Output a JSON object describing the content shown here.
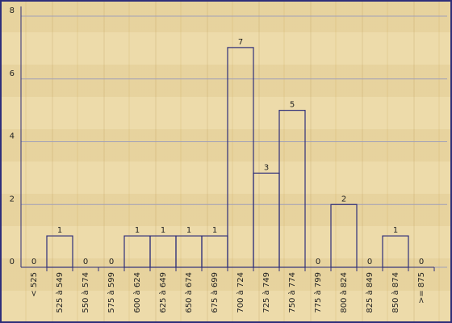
{
  "chart_data": {
    "type": "bar",
    "categories": [
      "< 525",
      "525 à 549",
      "550 à 574",
      "575 à 599",
      "600 à 624",
      "625 à 649",
      "650 à 674",
      "675 à 699",
      "700 à 724",
      "725 à 749",
      "750 à 774",
      "775 à 799",
      "800 à 824",
      "825 à 849",
      "850 à 874",
      ">= 875"
    ],
    "values": [
      0,
      1,
      0,
      0,
      1,
      1,
      1,
      1,
      7,
      3,
      5,
      0,
      2,
      0,
      1,
      0
    ],
    "color": "#2e2e7a",
    "ylim": [
      0,
      8
    ],
    "yticks": [
      0,
      2,
      4,
      6,
      8
    ],
    "grid": true
  }
}
